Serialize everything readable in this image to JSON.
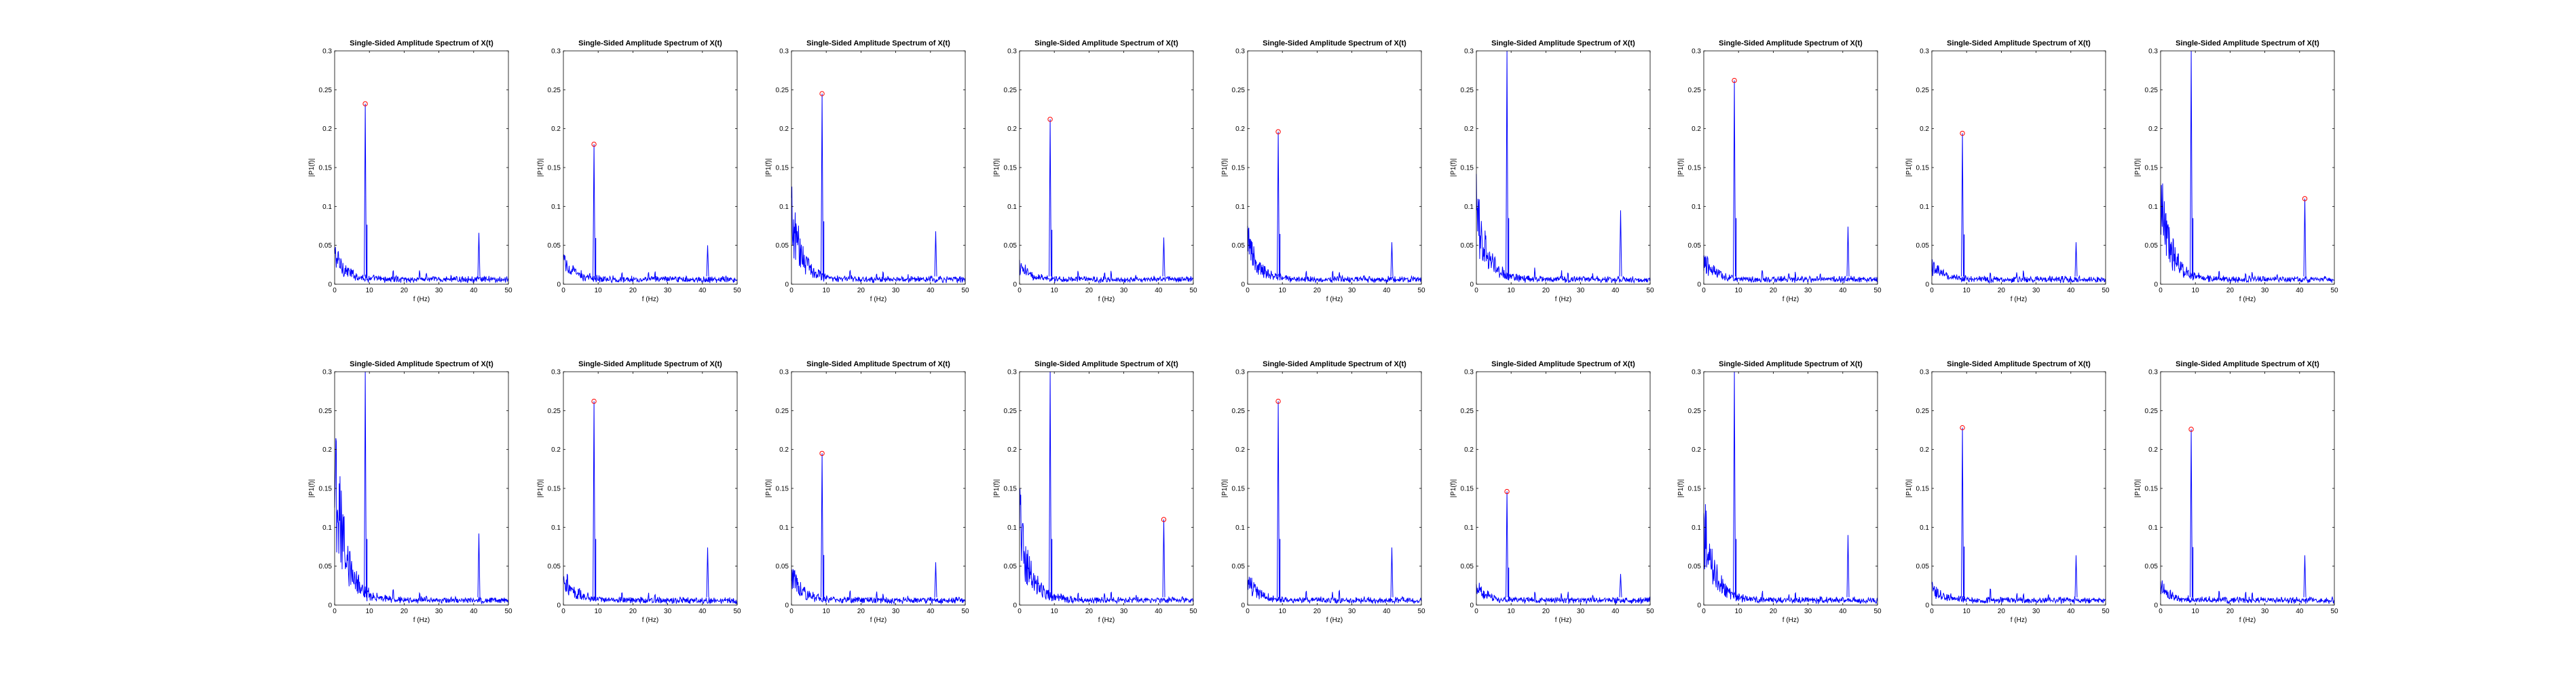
{
  "figure": {
    "background": "#ffffff",
    "spectrum_color": "#0000ff",
    "marker_color": "#ff0000"
  },
  "chart_common": {
    "type": "line",
    "title": "Single-Sided Amplitude Spectrum of X(t)",
    "xlabel": "f (Hz)",
    "ylabel": "|P1(f)|",
    "xlim": [
      0,
      50
    ],
    "ylim": [
      0,
      0.3
    ],
    "xticks": [
      "0",
      "10",
      "20",
      "30",
      "40",
      "50"
    ],
    "yticks": [
      "0",
      "0.05",
      "0.1",
      "0.15",
      "0.2",
      "0.25",
      "0.3"
    ],
    "grid": false,
    "legend": "none"
  },
  "chart_data": [
    {
      "type": "line",
      "title": "Single-Sided Amplitude Spectrum of X(t)",
      "xlabel": "f (Hz)",
      "ylabel": "|P1(f)|",
      "xlim": [
        0,
        50
      ],
      "ylim": [
        0,
        0.3
      ],
      "low_freq_level": 0.04,
      "peaks": [
        {
          "x": 8.8,
          "y": 0.232
        },
        {
          "x": 41.5,
          "y": 0.066
        }
      ],
      "marker": {
        "x": 8.8,
        "y": 0.232
      }
    },
    {
      "type": "line",
      "title": "Single-Sided Amplitude Spectrum of X(t)",
      "xlabel": "f (Hz)",
      "ylabel": "|P1(f)|",
      "xlim": [
        0,
        50
      ],
      "ylim": [
        0,
        0.3
      ],
      "low_freq_level": 0.03,
      "peaks": [
        {
          "x": 8.8,
          "y": 0.18
        },
        {
          "x": 41.5,
          "y": 0.05
        }
      ],
      "marker": {
        "x": 8.8,
        "y": 0.18
      }
    },
    {
      "type": "line",
      "title": "Single-Sided Amplitude Spectrum of X(t)",
      "xlabel": "f (Hz)",
      "ylabel": "|P1(f)|",
      "xlim": [
        0,
        50
      ],
      "ylim": [
        0,
        0.3
      ],
      "low_freq_level": 0.1,
      "peaks": [
        {
          "x": 8.8,
          "y": 0.245
        },
        {
          "x": 41.5,
          "y": 0.068
        }
      ],
      "marker": {
        "x": 8.8,
        "y": 0.245
      }
    },
    {
      "type": "line",
      "title": "Single-Sided Amplitude Spectrum of X(t)",
      "xlabel": "f (Hz)",
      "ylabel": "|P1(f)|",
      "xlim": [
        0,
        50
      ],
      "ylim": [
        0,
        0.3
      ],
      "low_freq_level": 0.02,
      "peaks": [
        {
          "x": 8.8,
          "y": 0.212
        },
        {
          "x": 41.5,
          "y": 0.06
        }
      ],
      "marker": {
        "x": 8.8,
        "y": 0.212
      }
    },
    {
      "type": "line",
      "title": "Single-Sided Amplitude Spectrum of X(t)",
      "xlabel": "f (Hz)",
      "ylabel": "|P1(f)|",
      "xlim": [
        0,
        50
      ],
      "ylim": [
        0,
        0.3
      ],
      "low_freq_level": 0.06,
      "peaks": [
        {
          "x": 8.8,
          "y": 0.196
        },
        {
          "x": 41.5,
          "y": 0.054
        }
      ],
      "marker": {
        "x": 8.8,
        "y": 0.196
      }
    },
    {
      "type": "line",
      "title": "Single-Sided Amplitude Spectrum of X(t)",
      "xlabel": "f (Hz)",
      "ylabel": "|P1(f)|",
      "xlim": [
        0,
        50
      ],
      "ylim": [
        0,
        0.3
      ],
      "low_freq_level": 0.11,
      "peaks": [
        {
          "x": 8.8,
          "y": 0.3
        },
        {
          "x": 41.5,
          "y": 0.095
        }
      ],
      "marker": null
    },
    {
      "type": "line",
      "title": "Single-Sided Amplitude Spectrum of X(t)",
      "xlabel": "f (Hz)",
      "ylabel": "|P1(f)|",
      "xlim": [
        0,
        50
      ],
      "ylim": [
        0,
        0.3
      ],
      "low_freq_level": 0.03,
      "peaks": [
        {
          "x": 8.8,
          "y": 0.262
        },
        {
          "x": 41.5,
          "y": 0.074
        }
      ],
      "marker": {
        "x": 8.8,
        "y": 0.262
      }
    },
    {
      "type": "line",
      "title": "Single-Sided Amplitude Spectrum of X(t)",
      "xlabel": "f (Hz)",
      "ylabel": "|P1(f)|",
      "xlim": [
        0,
        50
      ],
      "ylim": [
        0,
        0.3
      ],
      "low_freq_level": 0.02,
      "peaks": [
        {
          "x": 8.8,
          "y": 0.194
        },
        {
          "x": 41.5,
          "y": 0.054
        }
      ],
      "marker": {
        "x": 8.8,
        "y": 0.194
      }
    },
    {
      "type": "line",
      "title": "Single-Sided Amplitude Spectrum of X(t)",
      "xlabel": "f (Hz)",
      "ylabel": "|P1(f)|",
      "xlim": [
        0,
        50
      ],
      "ylim": [
        0,
        0.3
      ],
      "low_freq_level": 0.12,
      "peaks": [
        {
          "x": 8.8,
          "y": 0.3
        },
        {
          "x": 41.5,
          "y": 0.11
        }
      ],
      "marker": {
        "x": 41.5,
        "y": 0.11
      }
    },
    {
      "type": "line",
      "title": "Single-Sided Amplitude Spectrum of X(t)",
      "xlabel": "f (Hz)",
      "ylabel": "|P1(f)|",
      "xlim": [
        0,
        50
      ],
      "ylim": [
        0,
        0.3
      ],
      "low_freq_level": 0.21,
      "peaks": [
        {
          "x": 8.8,
          "y": 0.3
        },
        {
          "x": 41.5,
          "y": 0.092
        }
      ],
      "marker": null
    },
    {
      "type": "line",
      "title": "Single-Sided Amplitude Spectrum of X(t)",
      "xlabel": "f (Hz)",
      "ylabel": "|P1(f)|",
      "xlim": [
        0,
        50
      ],
      "ylim": [
        0,
        0.3
      ],
      "low_freq_level": 0.04,
      "peaks": [
        {
          "x": 8.8,
          "y": 0.262
        },
        {
          "x": 41.5,
          "y": 0.074
        }
      ],
      "marker": {
        "x": 8.8,
        "y": 0.262
      }
    },
    {
      "type": "line",
      "title": "Single-Sided Amplitude Spectrum of X(t)",
      "xlabel": "f (Hz)",
      "ylabel": "|P1(f)|",
      "xlim": [
        0,
        50
      ],
      "ylim": [
        0,
        0.3
      ],
      "low_freq_level": 0.04,
      "peaks": [
        {
          "x": 8.8,
          "y": 0.195
        },
        {
          "x": 41.5,
          "y": 0.055
        }
      ],
      "marker": {
        "x": 8.8,
        "y": 0.195
      }
    },
    {
      "type": "line",
      "title": "Single-Sided Amplitude Spectrum of X(t)",
      "xlabel": "f (Hz)",
      "ylabel": "|P1(f)|",
      "xlim": [
        0,
        50
      ],
      "ylim": [
        0,
        0.3
      ],
      "low_freq_level": 0.12,
      "peaks": [
        {
          "x": 8.8,
          "y": 0.3
        },
        {
          "x": 41.5,
          "y": 0.11
        }
      ],
      "marker": {
        "x": 41.5,
        "y": 0.11
      }
    },
    {
      "type": "line",
      "title": "Single-Sided Amplitude Spectrum of X(t)",
      "xlabel": "f (Hz)",
      "ylabel": "|P1(f)|",
      "xlim": [
        0,
        50
      ],
      "ylim": [
        0,
        0.3
      ],
      "low_freq_level": 0.03,
      "peaks": [
        {
          "x": 8.8,
          "y": 0.262
        },
        {
          "x": 41.5,
          "y": 0.074
        }
      ],
      "marker": {
        "x": 8.8,
        "y": 0.262
      }
    },
    {
      "type": "line",
      "title": "Single-Sided Amplitude Spectrum of X(t)",
      "xlabel": "f (Hz)",
      "ylabel": "|P1(f)|",
      "xlim": [
        0,
        50
      ],
      "ylim": [
        0,
        0.3
      ],
      "low_freq_level": 0.02,
      "peaks": [
        {
          "x": 8.8,
          "y": 0.146
        },
        {
          "x": 41.5,
          "y": 0.04
        }
      ],
      "marker": {
        "x": 8.8,
        "y": 0.146
      }
    },
    {
      "type": "line",
      "title": "Single-Sided Amplitude Spectrum of X(t)",
      "xlabel": "f (Hz)",
      "ylabel": "|P1(f)|",
      "xlim": [
        0,
        50
      ],
      "ylim": [
        0,
        0.3
      ],
      "low_freq_level": 0.12,
      "peaks": [
        {
          "x": 8.8,
          "y": 0.3
        },
        {
          "x": 41.5,
          "y": 0.09
        }
      ],
      "marker": null
    },
    {
      "type": "line",
      "title": "Single-Sided Amplitude Spectrum of X(t)",
      "xlabel": "f (Hz)",
      "ylabel": "|P1(f)|",
      "xlim": [
        0,
        50
      ],
      "ylim": [
        0,
        0.3
      ],
      "low_freq_level": 0.02,
      "peaks": [
        {
          "x": 8.8,
          "y": 0.228
        },
        {
          "x": 41.5,
          "y": 0.064
        }
      ],
      "marker": {
        "x": 8.8,
        "y": 0.228
      }
    },
    {
      "type": "line",
      "title": "Single-Sided Amplitude Spectrum of X(t)",
      "xlabel": "f (Hz)",
      "ylabel": "|P1(f)|",
      "xlim": [
        0,
        50
      ],
      "ylim": [
        0,
        0.3
      ],
      "low_freq_level": 0.02,
      "peaks": [
        {
          "x": 8.8,
          "y": 0.226
        },
        {
          "x": 41.5,
          "y": 0.064
        }
      ],
      "marker": {
        "x": 8.8,
        "y": 0.226
      }
    }
  ]
}
